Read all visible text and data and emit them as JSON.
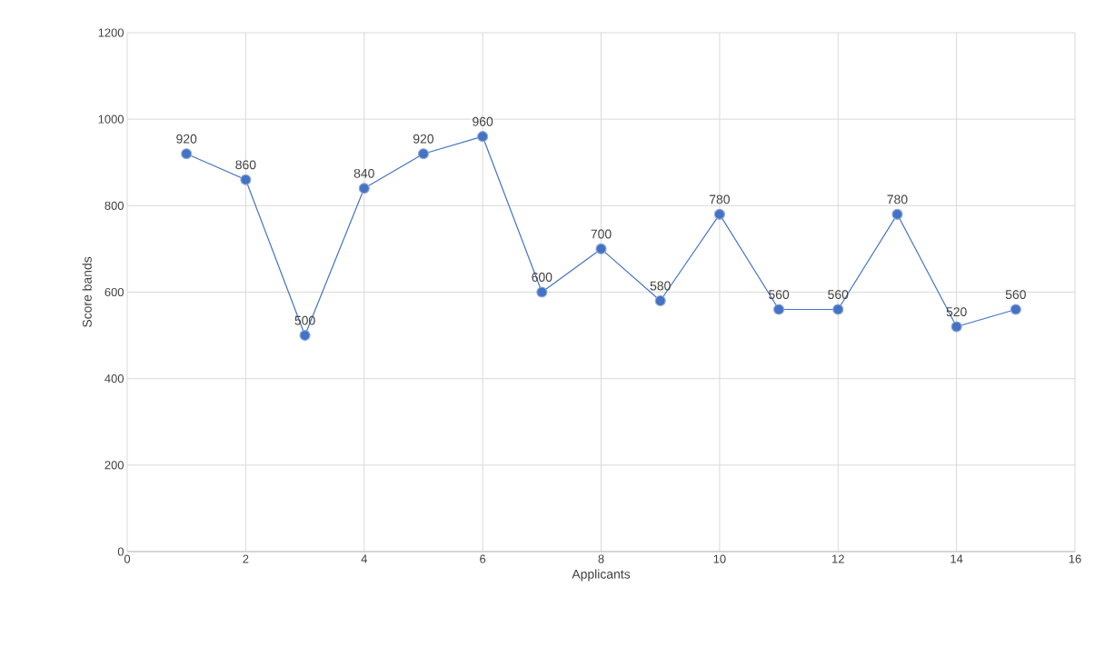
{
  "chart_data": {
    "type": "line",
    "xlabel": "Applicants",
    "ylabel": "Score bands",
    "x": [
      1,
      2,
      3,
      4,
      5,
      6,
      7,
      8,
      9,
      10,
      11,
      12,
      13,
      14,
      15
    ],
    "values": [
      920,
      860,
      500,
      840,
      920,
      960,
      600,
      700,
      580,
      780,
      560,
      560,
      780,
      520,
      560
    ],
    "color": "#4472c4",
    "marker": "circle",
    "data_labels": true,
    "grid": true,
    "xlim": [
      0,
      16
    ],
    "xticks": [
      0,
      2,
      4,
      6,
      8,
      10,
      12,
      14,
      16
    ],
    "ylim": [
      0,
      1200
    ],
    "yticks": [
      0,
      200,
      400,
      600,
      800,
      1000,
      1200
    ]
  }
}
